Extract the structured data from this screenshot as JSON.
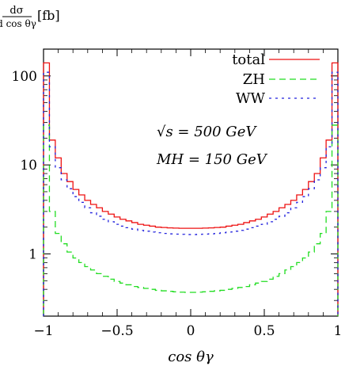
{
  "chart_data": {
    "type": "line",
    "ylabel": {
      "numerator": "dσ",
      "denominator": "d cos θγ",
      "unit": "[fb]"
    },
    "xlabel": "cos θγ",
    "xlim": [
      -1,
      1
    ],
    "ylim": [
      0.2,
      200
    ],
    "yscale": "log",
    "x_ticks": [
      {
        "value": -1,
        "label": "−1"
      },
      {
        "value": -0.5,
        "label": "−0.5"
      },
      {
        "value": 0,
        "label": "0"
      },
      {
        "value": 0.5,
        "label": "0.5"
      },
      {
        "value": 1,
        "label": "1"
      }
    ],
    "y_ticks": [
      {
        "value": 1,
        "label": "1"
      },
      {
        "value": 10,
        "label": "10"
      },
      {
        "value": 100,
        "label": "100"
      }
    ],
    "legend_position": "top-right",
    "annotations": [
      "√s = 500 GeV",
      "MH = 150 GeV"
    ],
    "bin_edges": [
      -1.0,
      -0.96,
      -0.92,
      -0.88,
      -0.84,
      -0.8,
      -0.76,
      -0.72,
      -0.68,
      -0.64,
      -0.6,
      -0.56,
      -0.52,
      -0.48,
      -0.44,
      -0.4,
      -0.36,
      -0.32,
      -0.28,
      -0.24,
      -0.2,
      -0.16,
      -0.12,
      -0.08,
      -0.04,
      0.0,
      0.04,
      0.08,
      0.12,
      0.16,
      0.2,
      0.24,
      0.28,
      0.32,
      0.36,
      0.4,
      0.44,
      0.48,
      0.52,
      0.56,
      0.6,
      0.64,
      0.68,
      0.72,
      0.76,
      0.8,
      0.84,
      0.88,
      0.92,
      0.96,
      1.0
    ],
    "series": [
      {
        "name": "total",
        "color": "#ee1111",
        "dash": "solid",
        "values": [
          140,
          19,
          12,
          8.0,
          6.5,
          5.3,
          4.6,
          4.0,
          3.6,
          3.3,
          3.0,
          2.8,
          2.6,
          2.45,
          2.35,
          2.25,
          2.15,
          2.1,
          2.05,
          2.0,
          1.98,
          1.96,
          1.95,
          1.94,
          1.94,
          1.94,
          1.94,
          1.95,
          1.96,
          1.98,
          2.0,
          2.05,
          2.1,
          2.15,
          2.25,
          2.35,
          2.45,
          2.6,
          2.8,
          3.0,
          3.3,
          3.6,
          4.0,
          4.6,
          5.3,
          6.5,
          8.0,
          12,
          19,
          140
        ]
      },
      {
        "name": "ZH",
        "color": "#22dd22",
        "dash": "8 5",
        "values": [
          28,
          3.0,
          1.7,
          1.3,
          1.05,
          0.9,
          0.8,
          0.72,
          0.66,
          0.6,
          0.56,
          0.52,
          0.49,
          0.47,
          0.45,
          0.43,
          0.42,
          0.41,
          0.4,
          0.39,
          0.385,
          0.38,
          0.375,
          0.372,
          0.37,
          0.37,
          0.372,
          0.375,
          0.38,
          0.385,
          0.39,
          0.4,
          0.41,
          0.42,
          0.43,
          0.45,
          0.47,
          0.49,
          0.52,
          0.56,
          0.6,
          0.66,
          0.72,
          0.8,
          0.9,
          1.05,
          1.3,
          1.7,
          3.0,
          28
        ]
      },
      {
        "name": "WW",
        "color": "#2222dd",
        "dash": "3 5",
        "values": [
          110,
          16,
          9.3,
          6.8,
          5.4,
          4.4,
          3.8,
          3.3,
          2.9,
          2.65,
          2.45,
          2.3,
          2.15,
          2.05,
          1.97,
          1.9,
          1.84,
          1.8,
          1.76,
          1.73,
          1.7,
          1.68,
          1.67,
          1.66,
          1.65,
          1.65,
          1.66,
          1.67,
          1.68,
          1.7,
          1.73,
          1.76,
          1.8,
          1.84,
          1.9,
          1.97,
          2.05,
          2.15,
          2.3,
          2.45,
          2.65,
          2.9,
          3.3,
          3.8,
          4.4,
          5.4,
          6.8,
          9.3,
          16,
          110
        ]
      }
    ]
  }
}
